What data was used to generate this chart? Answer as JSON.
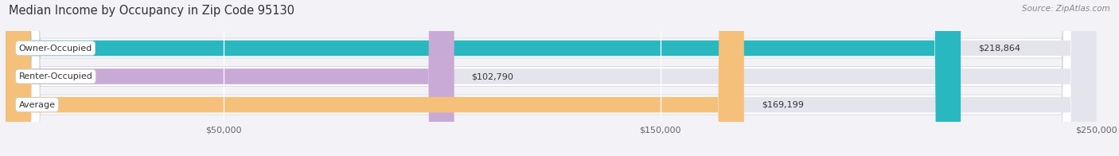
{
  "title": "Median Income by Occupancy in Zip Code 95130",
  "source": "Source: ZipAtlas.com",
  "categories": [
    "Owner-Occupied",
    "Renter-Occupied",
    "Average"
  ],
  "values": [
    218864,
    102790,
    169199
  ],
  "labels": [
    "$218,864",
    "$102,790",
    "$169,199"
  ],
  "bar_colors": [
    "#2ab8c0",
    "#c9aad6",
    "#f5c07a"
  ],
  "xlim": [
    0,
    250000
  ],
  "xtick_positions": [
    50000,
    150000,
    250000
  ],
  "xtick_labels": [
    "$50,000",
    "$150,000",
    "$250,000"
  ],
  "bg_color": "#f2f2f7",
  "bar_bg_color": "#e4e4ec",
  "row_bg_color": "#ffffff",
  "title_fontsize": 10.5,
  "label_fontsize": 8,
  "value_fontsize": 8,
  "figsize": [
    14.06,
    1.96
  ],
  "dpi": 100
}
